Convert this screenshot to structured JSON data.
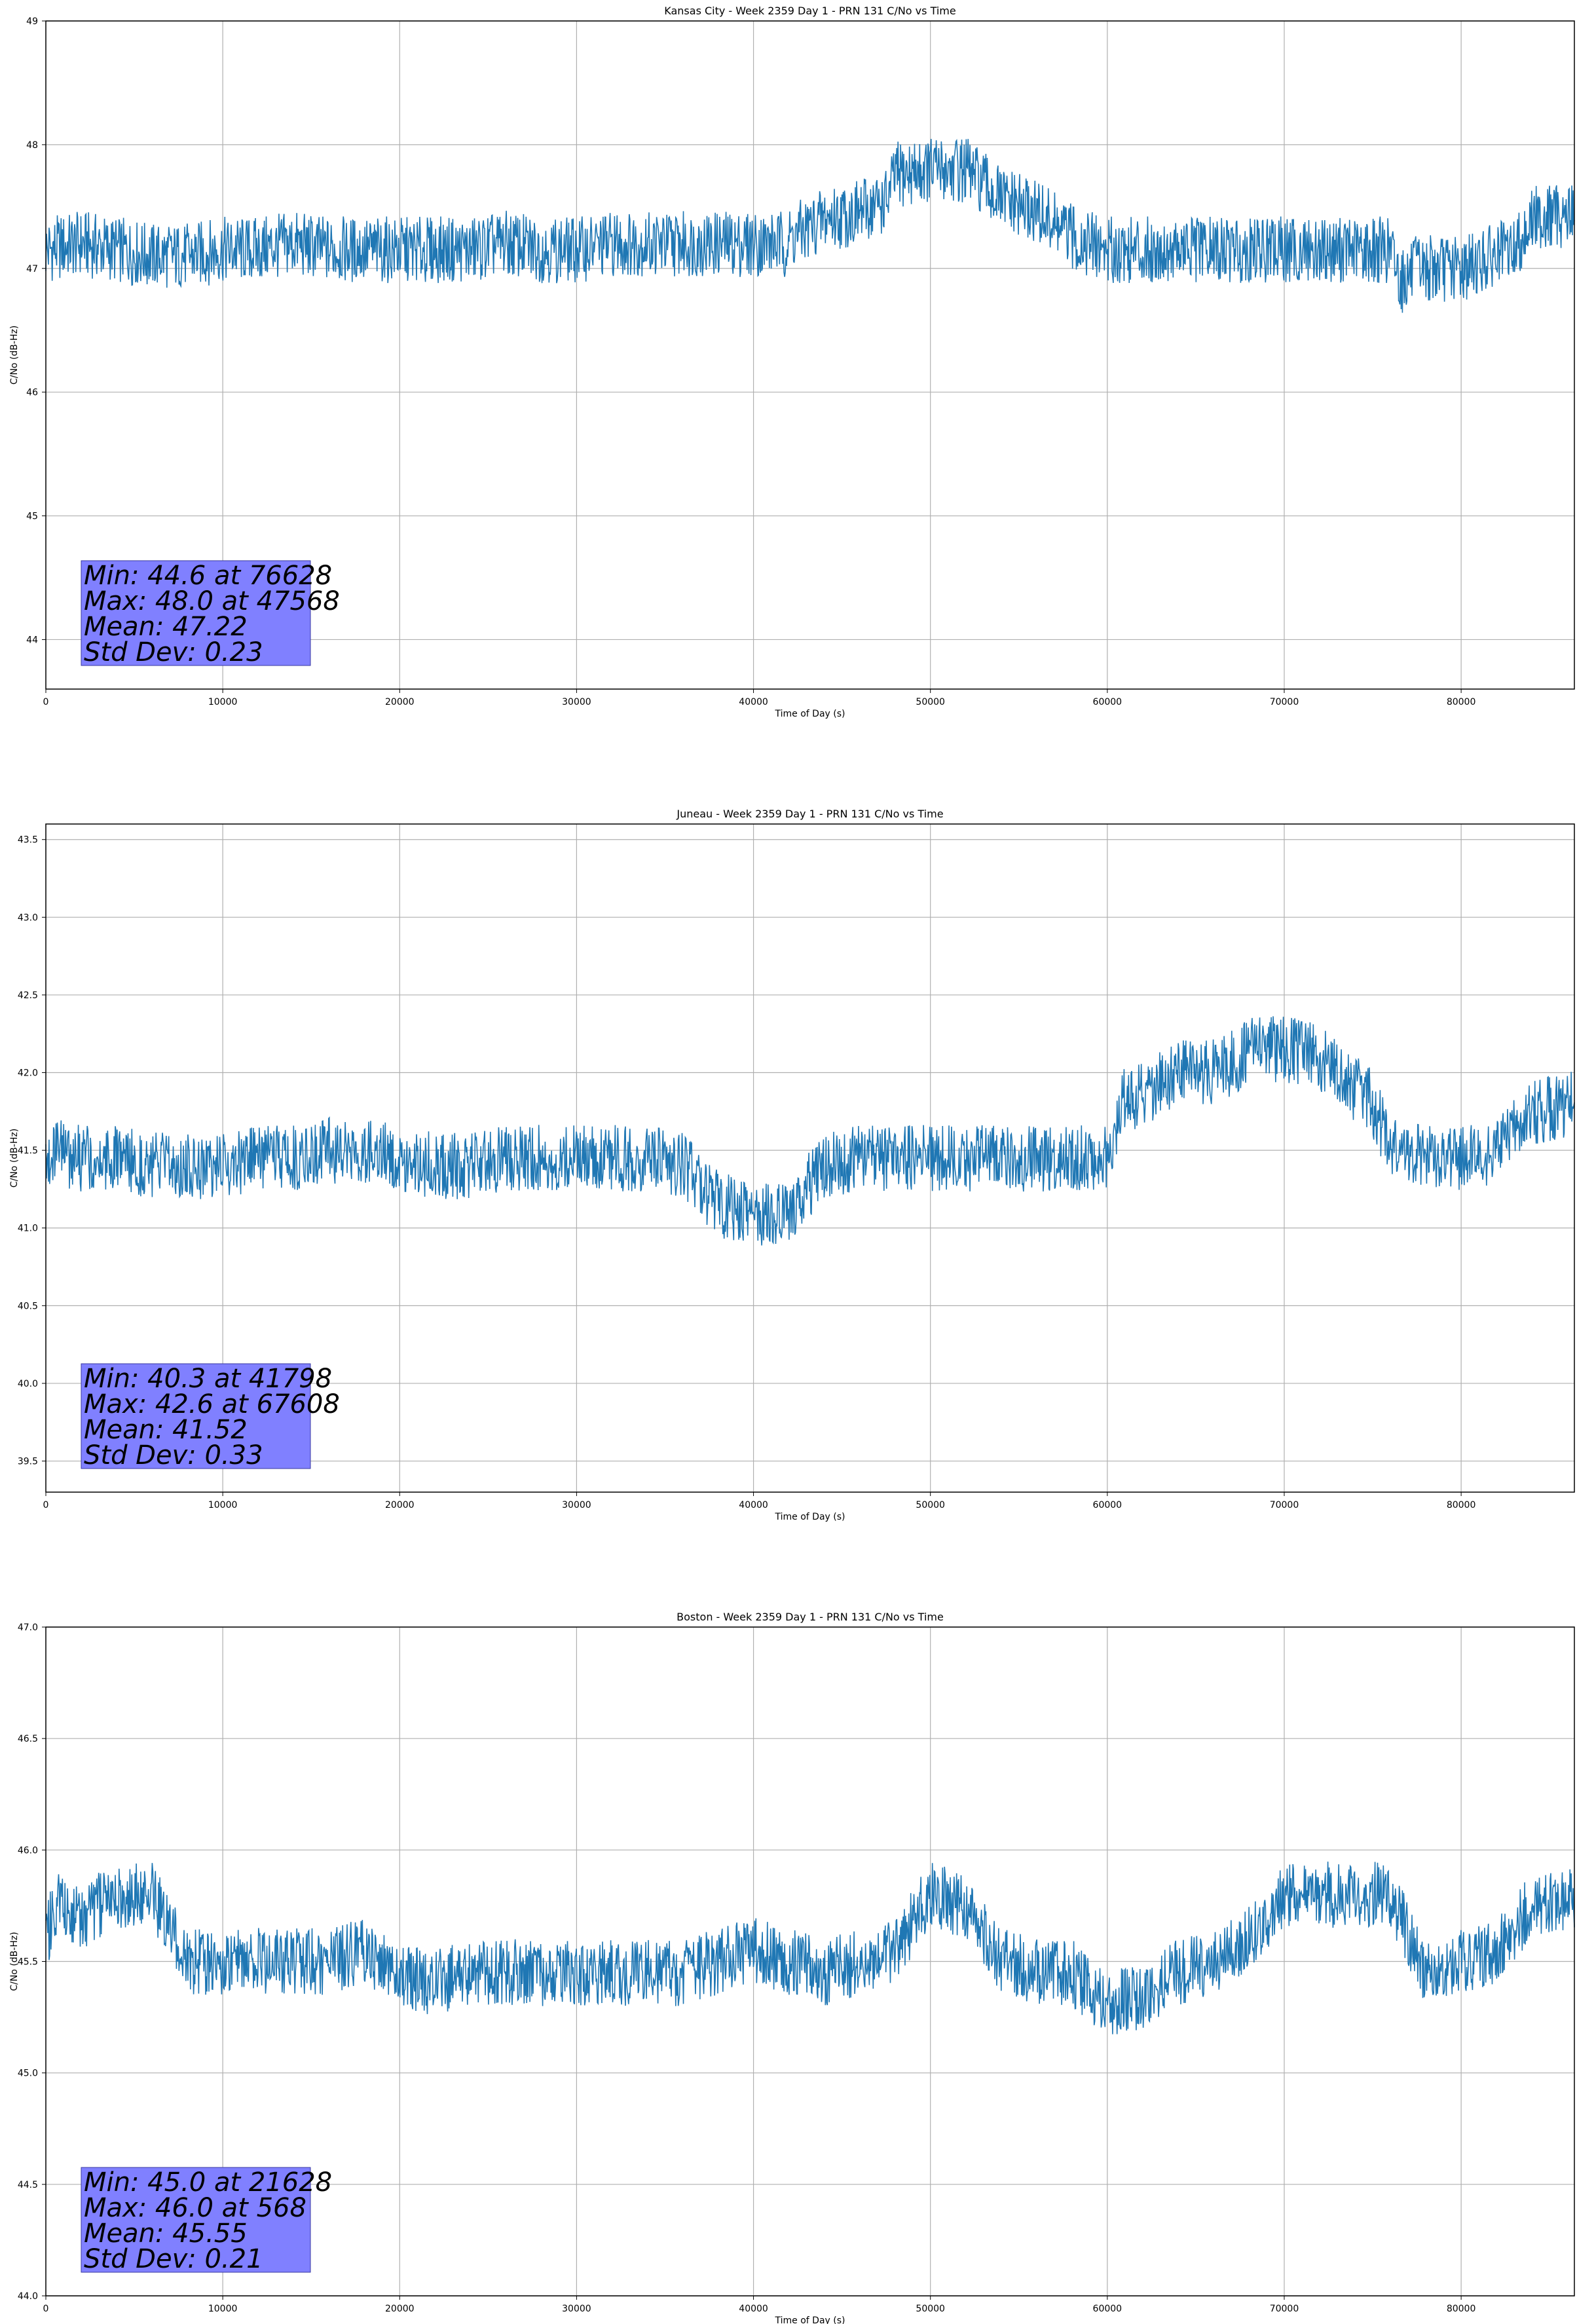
{
  "chart_data": [
    {
      "type": "line",
      "title": "Kansas City - Week 2359 Day 1 - PRN 131 C/No vs Time",
      "xlabel": "Time of Day (s)",
      "ylabel": "C/No (dB-Hz)",
      "xlim": [
        0,
        86400
      ],
      "ylim": [
        43.6,
        49.0
      ],
      "xticks": [
        "0",
        "10000",
        "20000",
        "30000",
        "40000",
        "50000",
        "60000",
        "70000",
        "80000"
      ],
      "yticks": [
        "44",
        "45",
        "46",
        "47",
        "48",
        "49"
      ],
      "grid": true,
      "color": "#1f77b4",
      "series": [
        {
          "x": [
            0,
            2000,
            4000,
            6000,
            8000,
            10000,
            12000,
            14000,
            16000,
            18000,
            20000,
            22000,
            24000,
            26000,
            28000,
            30000,
            32000,
            34000,
            36000,
            38000,
            40000,
            41798,
            42200,
            44000,
            46000,
            47568,
            48000,
            50000,
            52000,
            54000,
            56000,
            58000,
            60000,
            62000,
            64000,
            66000,
            68000,
            70000,
            72000,
            74000,
            76000,
            76628,
            77500,
            80000,
            82000,
            83000,
            84000,
            86400
          ],
          "y": [
            47.15,
            47.2,
            47.15,
            47.1,
            47.1,
            47.15,
            47.15,
            47.2,
            47.15,
            47.15,
            47.15,
            47.15,
            47.15,
            47.2,
            47.15,
            47.15,
            47.2,
            47.2,
            47.2,
            47.2,
            47.2,
            47.2,
            47.25,
            47.4,
            47.45,
            47.55,
            47.75,
            47.8,
            47.8,
            47.55,
            47.45,
            47.25,
            47.15,
            47.15,
            47.15,
            47.15,
            47.15,
            47.15,
            47.15,
            47.15,
            47.15,
            46.9,
            47.0,
            47.0,
            47.1,
            47.15,
            47.4,
            47.45
          ]
        }
      ],
      "stats": [
        "Min: 44.6 at 76628",
        "Max: 48.0 at 47568",
        "Mean: 47.22",
        "Std Dev: 0.23"
      ]
    },
    {
      "type": "line",
      "title": "Juneau - Week 2359 Day 1 - PRN 131 C/No vs Time",
      "xlabel": "Time of Day (s)",
      "ylabel": "C/No (dB-Hz)",
      "xlim": [
        0,
        86400
      ],
      "ylim": [
        39.3,
        43.6
      ],
      "xticks": [
        "0",
        "10000",
        "20000",
        "30000",
        "40000",
        "50000",
        "60000",
        "70000",
        "80000"
      ],
      "yticks": [
        "39.5",
        "40.0",
        "40.5",
        "41.0",
        "41.5",
        "42.0",
        "42.5",
        "43.0",
        "43.5"
      ],
      "grid": true,
      "color": "#1f77b4",
      "series": [
        {
          "x": [
            0,
            2000,
            4000,
            6000,
            8000,
            10000,
            12000,
            14000,
            16000,
            18000,
            20000,
            22000,
            24000,
            26000,
            28000,
            30000,
            32000,
            34000,
            36000,
            38000,
            40000,
            41798,
            43000,
            44000,
            46000,
            48000,
            50000,
            52000,
            54000,
            56000,
            58000,
            60000,
            61000,
            62000,
            64000,
            66000,
            67608,
            68000,
            70000,
            72000,
            74000,
            75000,
            76000,
            78000,
            80000,
            82000,
            84000,
            86400
          ],
          "y": [
            41.5,
            41.45,
            41.45,
            41.4,
            41.4,
            41.4,
            41.45,
            41.45,
            41.5,
            41.5,
            41.45,
            41.4,
            41.4,
            41.45,
            41.45,
            41.45,
            41.45,
            41.45,
            41.4,
            41.15,
            41.1,
            41.1,
            41.25,
            41.4,
            41.45,
            41.45,
            41.45,
            41.45,
            41.45,
            41.45,
            41.45,
            41.45,
            41.85,
            41.85,
            42.0,
            42.0,
            42.1,
            42.15,
            42.15,
            42.1,
            41.9,
            41.8,
            41.5,
            41.45,
            41.45,
            41.5,
            41.75,
            41.8
          ]
        }
      ],
      "stats": [
        "Min: 40.3 at 41798",
        "Max: 42.6 at 67608",
        "Mean: 41.52",
        "Std Dev: 0.33"
      ]
    },
    {
      "type": "line",
      "title": "Boston - Week 2359 Day 1 - PRN 131 C/No vs Time",
      "xlabel": "Time of Day (s)",
      "ylabel": "C/No (dB-Hz)",
      "xlim": [
        0,
        86400
      ],
      "ylim": [
        44.0,
        47.0
      ],
      "xticks": [
        "0",
        "10000",
        "20000",
        "30000",
        "40000",
        "50000",
        "60000",
        "70000",
        "80000"
      ],
      "yticks": [
        "44.0",
        "44.5",
        "45.0",
        "45.5",
        "46.0",
        "46.5",
        "47.0"
      ],
      "grid": true,
      "color": "#1f77b4",
      "series": [
        {
          "x": [
            0,
            568,
            2000,
            4000,
            6000,
            8000,
            10000,
            12000,
            14000,
            16000,
            18000,
            20000,
            21628,
            22000,
            24000,
            26000,
            28000,
            30000,
            32000,
            34000,
            36000,
            38000,
            40000,
            42000,
            44000,
            46000,
            48000,
            50000,
            52000,
            54000,
            56000,
            58000,
            60000,
            62000,
            64000,
            66000,
            68000,
            70000,
            72000,
            74000,
            76000,
            78000,
            80000,
            82000,
            84000,
            86400
          ],
          "y": [
            45.6,
            45.75,
            45.7,
            45.8,
            45.8,
            45.5,
            45.5,
            45.5,
            45.5,
            45.5,
            45.55,
            45.45,
            45.4,
            45.4,
            45.45,
            45.45,
            45.45,
            45.45,
            45.45,
            45.45,
            45.45,
            45.5,
            45.55,
            45.5,
            45.45,
            45.5,
            45.55,
            45.8,
            45.75,
            45.5,
            45.45,
            45.45,
            45.3,
            45.35,
            45.45,
            45.5,
            45.6,
            45.8,
            45.8,
            45.8,
            45.8,
            45.45,
            45.5,
            45.55,
            45.75,
            45.8
          ]
        }
      ],
      "stats": [
        "Min: 45.0 at 21628",
        "Max: 46.0 at 568",
        "Mean: 45.55",
        "Std Dev: 0.21"
      ]
    }
  ]
}
